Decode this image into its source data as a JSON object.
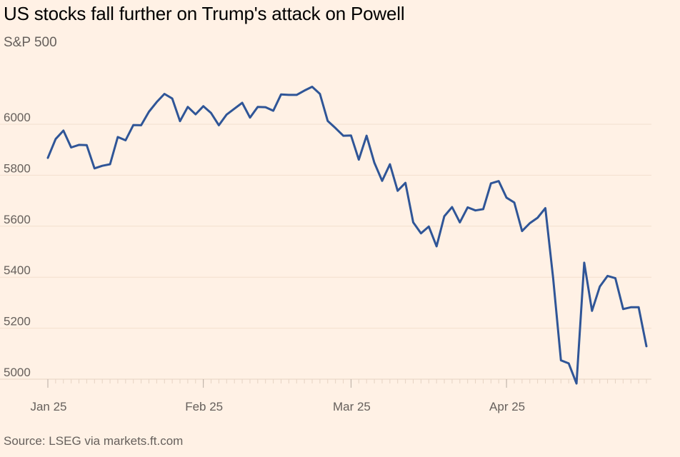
{
  "header": {
    "title": "US stocks fall further on Trump's attack on Powell",
    "subtitle": "S&P 500"
  },
  "footer": {
    "source": "Source: LSEG via markets.ft.com"
  },
  "colors": {
    "background": "#fff1e5",
    "line": "#2f5597",
    "grid": "#f2dfce",
    "tick_text": "#66605c"
  },
  "chart_data": {
    "type": "line",
    "title": "US stocks fall further on Trump's attack on Powell",
    "subtitle": "S&P 500",
    "source": "Source: LSEG via markets.ft.com",
    "xlabel": "",
    "ylabel": "",
    "ylim": [
      4980,
      6200
    ],
    "yticks": [
      5000,
      5200,
      5400,
      5600,
      5800,
      6000
    ],
    "xticks": [
      {
        "label": "Jan 25",
        "index": 0
      },
      {
        "label": "Feb 25",
        "index": 20
      },
      {
        "label": "Mar 25",
        "index": 39
      },
      {
        "label": "Apr 25",
        "index": 59
      }
    ],
    "grid": true,
    "legend": "none",
    "series": [
      {
        "values": [
          5868,
          5942,
          5975,
          5909,
          5919,
          5918,
          5827,
          5837,
          5843,
          5950,
          5937,
          5997,
          5996,
          6049,
          6087,
          6119,
          6101,
          6012,
          6068,
          6039,
          6071,
          6044,
          5996,
          6038,
          6061,
          6084,
          6026,
          6068,
          6067,
          6053,
          6117,
          6115,
          6115,
          6132,
          6147,
          6119,
          6013,
          5985,
          5955,
          5956,
          5861,
          5955,
          5849,
          5778,
          5843,
          5739,
          5770,
          5615,
          5572,
          5599,
          5521,
          5639,
          5675,
          5615,
          5674,
          5662,
          5667,
          5768,
          5777,
          5712,
          5693,
          5581,
          5612,
          5633,
          5671,
          5396,
          5074,
          5062,
          4983,
          5457,
          5268,
          5363,
          5405,
          5396,
          5275,
          5282,
          5282,
          5129
        ]
      }
    ]
  }
}
